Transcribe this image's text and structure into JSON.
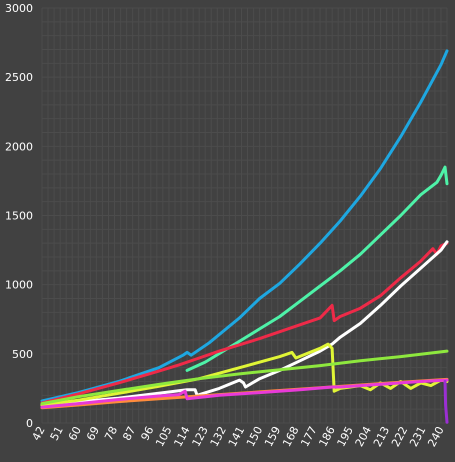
{
  "chart_data": {
    "type": "line",
    "title": "",
    "xlabel": "",
    "ylabel": "",
    "xlim": [
      42,
      243
    ],
    "ylim": [
      0,
      3000
    ],
    "grid": true,
    "legend": "none",
    "y_ticks": [
      "0",
      "500",
      "1000",
      "1500",
      "2000",
      "2500",
      "3000"
    ],
    "x_ticks": [
      "42",
      "51",
      "60",
      "69",
      "78",
      "87",
      "96",
      "105",
      "114",
      "123",
      "132",
      "141",
      "150",
      "159",
      "168",
      "177",
      "186",
      "195",
      "204",
      "213",
      "222",
      "231",
      "240"
    ],
    "colors": {
      "background": "#414141",
      "grid": "#4c4c4c",
      "blue": "#1ea7e1",
      "teal": "#4ef2a8",
      "red": "#ee2a48",
      "white": "#ffffff",
      "yellow": "#e0f536",
      "green": "#8ee83e",
      "orange": "#ff8c3c",
      "magenta": "#e83ad8",
      "purple": "#9b2fd3"
    },
    "series": [
      {
        "color": "#1ea7e1",
        "x": [
          42,
          60,
          80,
          100,
          112,
          114,
          116,
          125,
          140,
          150,
          160,
          170,
          180,
          190,
          200,
          210,
          220,
          230,
          240,
          243
        ],
        "y": [
          160,
          220,
          300,
          400,
          490,
          510,
          490,
          580,
          760,
          900,
          1010,
          1150,
          1300,
          1460,
          1640,
          1840,
          2070,
          2320,
          2590,
          2690
        ]
      },
      {
        "color": "#4ef2a8",
        "x": [
          114,
          123,
          132,
          141,
          150,
          160,
          170,
          180,
          190,
          200,
          210,
          220,
          230,
          238,
          240,
          242,
          243
        ],
        "y": [
          380,
          440,
          520,
          600,
          680,
          770,
          880,
          990,
          1100,
          1220,
          1360,
          1500,
          1650,
          1740,
          1790,
          1850,
          1730
        ]
      },
      {
        "color": "#ee2a48",
        "x": [
          42,
          60,
          80,
          100,
          110,
          120,
          130,
          140,
          150,
          160,
          170,
          180,
          186,
          187,
          190,
          200,
          210,
          220,
          230,
          236,
          238,
          240,
          243
        ],
        "y": [
          145,
          210,
          290,
          375,
          420,
          470,
          520,
          565,
          610,
          660,
          710,
          760,
          850,
          740,
          770,
          830,
          920,
          1050,
          1170,
          1260,
          1220,
          1280,
          1300
        ]
      },
      {
        "color": "#ffffff",
        "x": [
          42,
          80,
          114,
          118,
          119,
          130,
          140,
          142,
          143,
          150,
          160,
          170,
          180,
          186,
          190,
          200,
          210,
          220,
          230,
          240,
          243
        ],
        "y": [
          130,
          180,
          240,
          240,
          200,
          250,
          310,
          290,
          260,
          320,
          380,
          450,
          520,
          570,
          620,
          720,
          850,
          990,
          1120,
          1250,
          1310
        ]
      },
      {
        "color": "#e0f536",
        "x": [
          42,
          60,
          80,
          100,
          120,
          140,
          160,
          166,
          168,
          180,
          184,
          186,
          187,
          190,
          200,
          205,
          210,
          215,
          220,
          225,
          230,
          235,
          240,
          243
        ],
        "y": [
          130,
          165,
          215,
          265,
          320,
          400,
          480,
          510,
          470,
          540,
          570,
          540,
          230,
          250,
          270,
          240,
          290,
          250,
          300,
          250,
          290,
          270,
          310,
          300
        ]
      },
      {
        "color": "#8ee83e",
        "x": [
          42,
          60,
          80,
          100,
          120,
          140,
          160,
          180,
          200,
          220,
          243
        ],
        "y": [
          140,
          190,
          235,
          280,
          320,
          355,
          385,
          415,
          450,
          480,
          520
        ]
      },
      {
        "color": "#ff8c3c",
        "x": [
          42,
          60,
          80,
          100,
          120,
          140,
          160,
          180,
          200,
          220,
          243
        ],
        "y": [
          110,
          130,
          155,
          175,
          195,
          215,
          235,
          255,
          275,
          295,
          315
        ]
      },
      {
        "color": "#e83ad8",
        "x": [
          42,
          60,
          80,
          100,
          110,
          113,
          114,
          130,
          150,
          170,
          186,
          190,
          210,
          230,
          243
        ],
        "y": [
          115,
          140,
          170,
          195,
          205,
          230,
          175,
          200,
          220,
          240,
          260,
          260,
          280,
          300,
          310
        ]
      },
      {
        "color": "#9b2fd3",
        "x": [
          242,
          242.3,
          243
        ],
        "y": [
          300,
          130,
          5
        ]
      }
    ]
  }
}
